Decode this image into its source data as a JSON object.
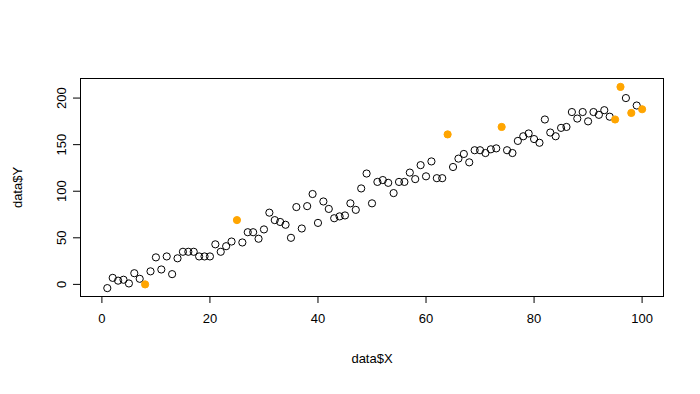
{
  "chart_data": {
    "type": "scatter",
    "x_label": "data$X",
    "y_label": "data$Y",
    "x": [
      1,
      2,
      3,
      4,
      5,
      6,
      7,
      8,
      9,
      10,
      11,
      12,
      13,
      14,
      15,
      16,
      17,
      18,
      19,
      20,
      21,
      22,
      23,
      24,
      25,
      26,
      27,
      28,
      29,
      30,
      31,
      32,
      33,
      34,
      35,
      36,
      37,
      38,
      39,
      40,
      41,
      42,
      43,
      44,
      45,
      46,
      47,
      48,
      49,
      50,
      51,
      52,
      53,
      54,
      55,
      56,
      57,
      58,
      59,
      60,
      61,
      62,
      63,
      64,
      65,
      66,
      67,
      68,
      69,
      70,
      71,
      72,
      73,
      74,
      75,
      76,
      77,
      78,
      79,
      80,
      81,
      82,
      83,
      84,
      85,
      86,
      87,
      88,
      89,
      90,
      91,
      92,
      93,
      94,
      95,
      96,
      97,
      98,
      99,
      100
    ],
    "values": [
      -4,
      7,
      4,
      5,
      1,
      12,
      6,
      0,
      14,
      29,
      16,
      30,
      11,
      28,
      35,
      35,
      35,
      30,
      30,
      30,
      43,
      35,
      41,
      46,
      69,
      45,
      56,
      56,
      49,
      59,
      77,
      69,
      67,
      64,
      50,
      83,
      60,
      84,
      97,
      66,
      89,
      81,
      71,
      73,
      74,
      87,
      80,
      103,
      119,
      87,
      110,
      112,
      109,
      98,
      110,
      110,
      120,
      113,
      128,
      116,
      132,
      114,
      114,
      161,
      126,
      135,
      140,
      131,
      144,
      144,
      141,
      145,
      146,
      169,
      144,
      141,
      154,
      159,
      162,
      156,
      152,
      177,
      163,
      159,
      168,
      169,
      185,
      178,
      185,
      175,
      185,
      182,
      187,
      180,
      177,
      212,
      200,
      184,
      192,
      188
    ],
    "colors": [
      "#000000",
      "#000000",
      "#000000",
      "#000000",
      "#000000",
      "#000000",
      "#000000",
      "#ffa500",
      "#000000",
      "#000000",
      "#000000",
      "#000000",
      "#000000",
      "#000000",
      "#000000",
      "#000000",
      "#000000",
      "#000000",
      "#000000",
      "#000000",
      "#000000",
      "#000000",
      "#000000",
      "#000000",
      "#ffa500",
      "#000000",
      "#000000",
      "#000000",
      "#000000",
      "#000000",
      "#000000",
      "#000000",
      "#000000",
      "#000000",
      "#000000",
      "#000000",
      "#000000",
      "#000000",
      "#000000",
      "#000000",
      "#000000",
      "#000000",
      "#000000",
      "#000000",
      "#000000",
      "#000000",
      "#000000",
      "#000000",
      "#000000",
      "#000000",
      "#000000",
      "#000000",
      "#000000",
      "#000000",
      "#000000",
      "#000000",
      "#000000",
      "#000000",
      "#000000",
      "#000000",
      "#000000",
      "#000000",
      "#000000",
      "#ffa500",
      "#000000",
      "#000000",
      "#000000",
      "#000000",
      "#000000",
      "#000000",
      "#000000",
      "#000000",
      "#000000",
      "#ffa500",
      "#000000",
      "#000000",
      "#000000",
      "#000000",
      "#000000",
      "#000000",
      "#000000",
      "#000000",
      "#000000",
      "#000000",
      "#000000",
      "#000000",
      "#000000",
      "#000000",
      "#000000",
      "#000000",
      "#000000",
      "#000000",
      "#000000",
      "#000000",
      "#ffa500",
      "#ffa500",
      "#000000",
      "#ffa500",
      "#000000",
      "#ffa500"
    ],
    "marker": "circle-open",
    "xlim": [
      -3.96,
      103.96
    ],
    "ylim": [
      -13,
      221
    ],
    "xticks": [
      0,
      20,
      40,
      60,
      80,
      100
    ],
    "yticks": [
      0,
      50,
      100,
      150,
      200
    ],
    "grid": false
  }
}
